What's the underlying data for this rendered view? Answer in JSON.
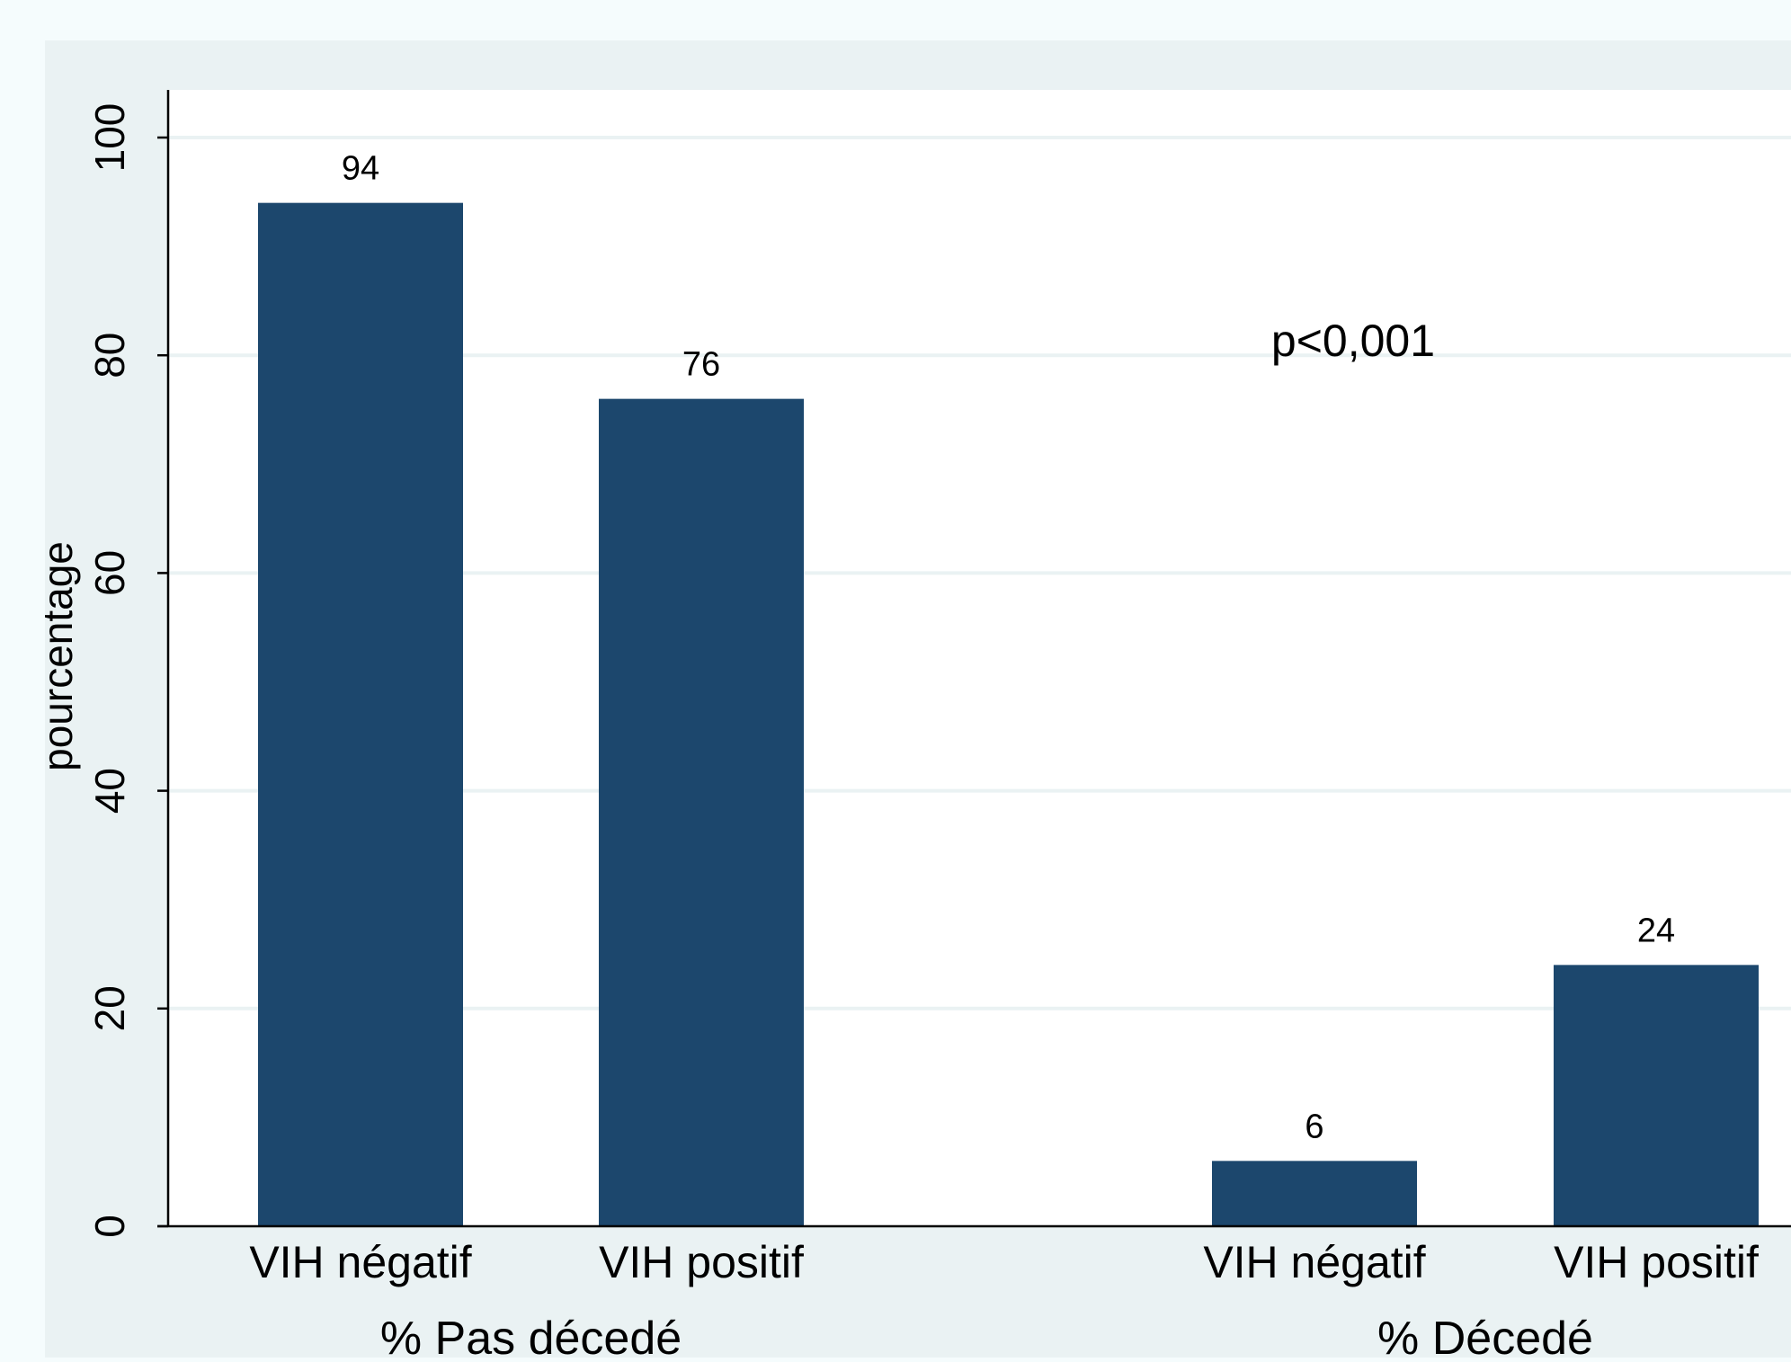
{
  "colors": {
    "page_background": "#f5fcfd",
    "graph_region": "#eaf2f3",
    "plot_background": "#ffffff",
    "bar": "#1c476d",
    "gridline": "#eaf2f3",
    "axis": "#000000",
    "text": "#000000"
  },
  "chart_data": {
    "type": "bar",
    "ylabel": "pourcentage",
    "ylim": [
      0,
      104
    ],
    "yticks": [
      0,
      20,
      40,
      60,
      80,
      100
    ],
    "grid": true,
    "annotation": "p<0,001",
    "groups": [
      {
        "label": "% Pas décedé",
        "categories": [
          "VIH négatif",
          "VIH positif"
        ],
        "values": [
          94,
          76
        ],
        "value_labels": [
          "94",
          "76"
        ]
      },
      {
        "label": "% Décedé",
        "categories": [
          "VIH négatif",
          "VIH positif"
        ],
        "values": [
          6,
          24
        ],
        "value_labels": [
          "6",
          "24"
        ]
      }
    ]
  }
}
